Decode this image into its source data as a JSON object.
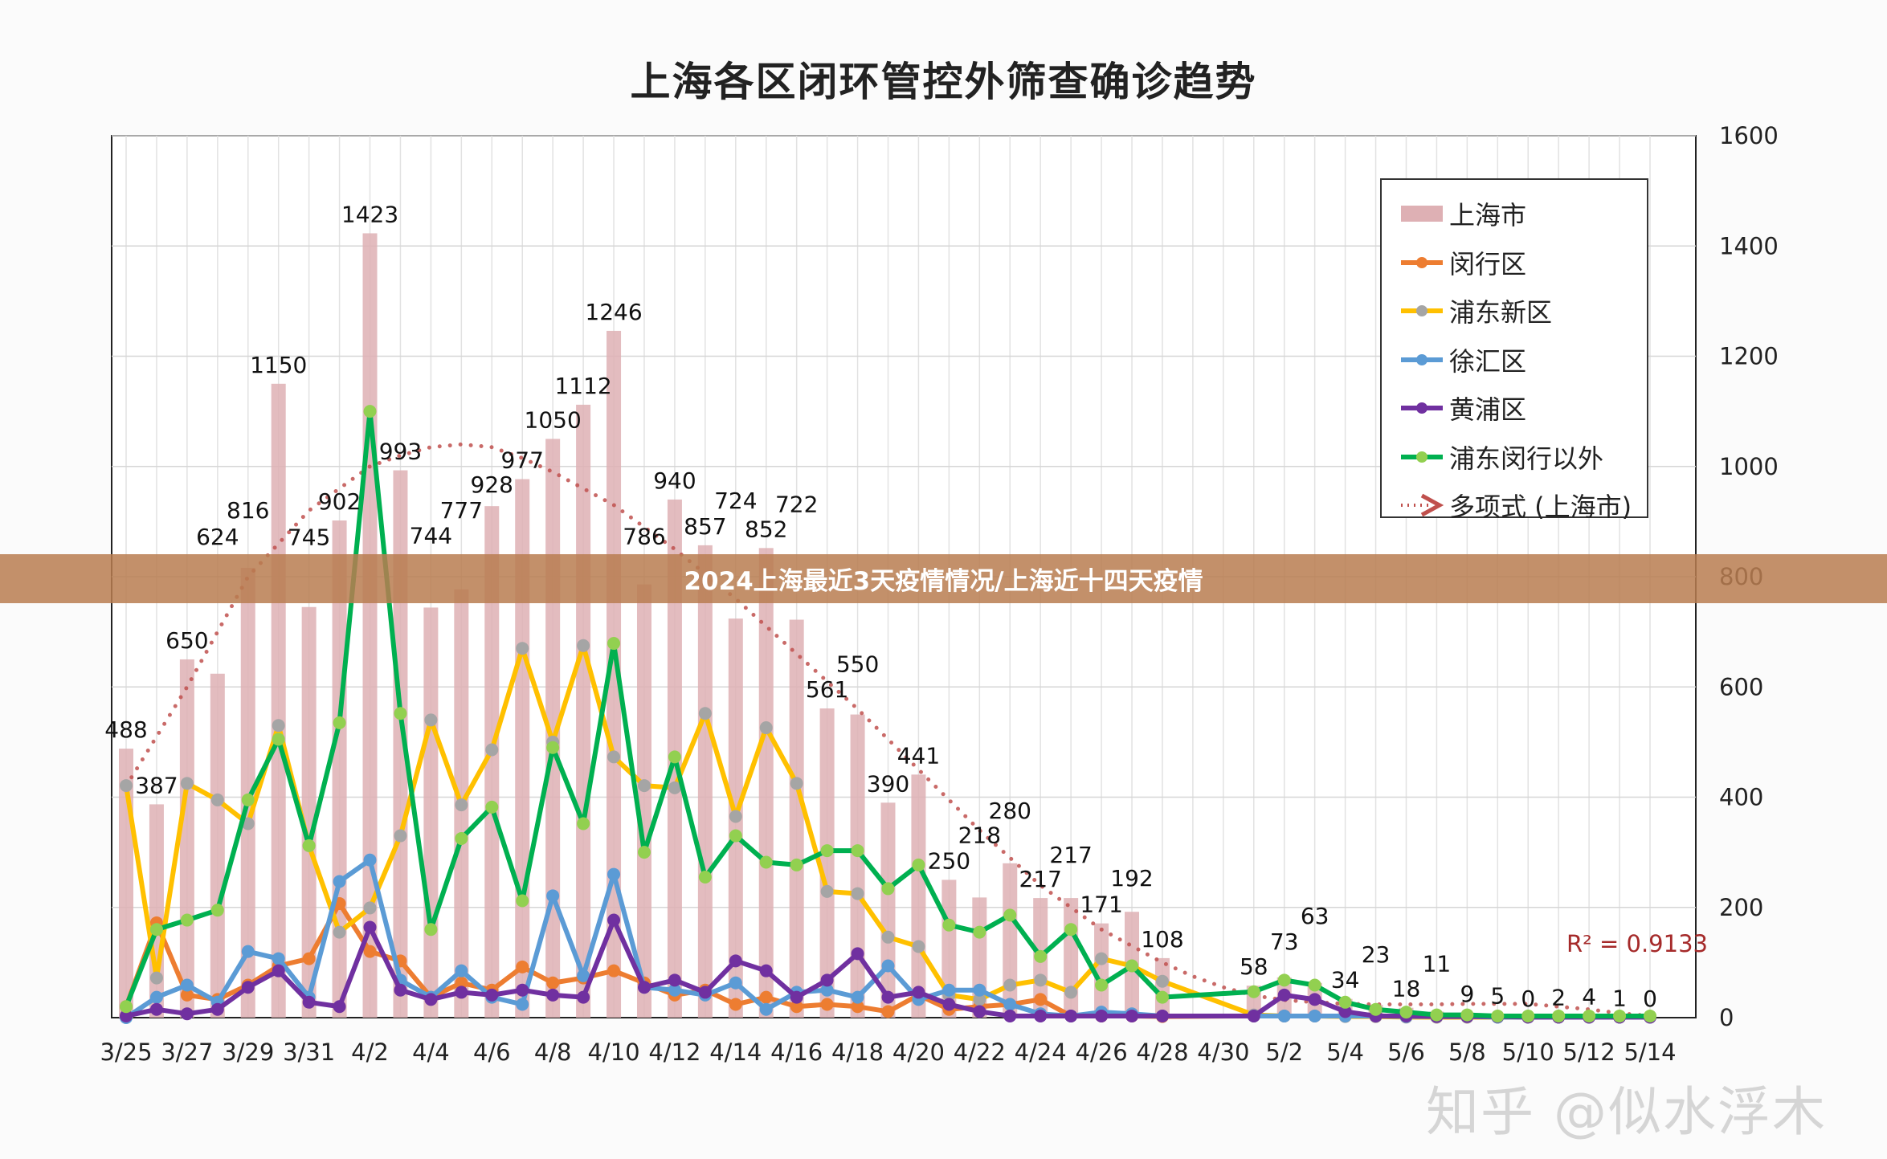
{
  "title": "上海各区闭环管控外筛查确诊趋势",
  "banner": "2024上海最近3天疫情情况/上海近十四天疫情",
  "watermark": "知乎 @似水浮木",
  "chart_data": {
    "type": "bar+line",
    "title": "上海各区闭环管控外筛查确诊趋势",
    "dates": [
      "3/25",
      "3/26",
      "3/27",
      "3/28",
      "3/29",
      "3/30",
      "3/31",
      "4/1",
      "4/2",
      "4/3",
      "4/4",
      "4/5",
      "4/6",
      "4/7",
      "4/8",
      "4/9",
      "4/10",
      "4/11",
      "4/12",
      "4/13",
      "4/14",
      "4/15",
      "4/16",
      "4/17",
      "4/18",
      "4/19",
      "4/20",
      "4/21",
      "4/22",
      "4/23",
      "4/24",
      "4/25",
      "4/26",
      "4/27",
      "4/28",
      "4/29",
      "4/30",
      "5/1",
      "5/2",
      "5/3",
      "5/4",
      "5/5",
      "5/6",
      "5/7",
      "5/8",
      "5/9",
      "5/10",
      "5/11",
      "5/12",
      "5/13",
      "5/14"
    ],
    "x_tick_labels": [
      "3/25",
      "3/27",
      "3/29",
      "3/31",
      "4/2",
      "4/4",
      "4/6",
      "4/8",
      "4/10",
      "4/12",
      "4/14",
      "4/16",
      "4/18",
      "4/20",
      "4/22",
      "4/24",
      "4/26",
      "4/28",
      "4/30",
      "5/2",
      "5/4",
      "5/6",
      "5/8",
      "5/10",
      "5/12",
      "5/14"
    ],
    "y_ticks": [
      0,
      200,
      400,
      600,
      800,
      1000,
      1200,
      1400,
      1600
    ],
    "ylim": [
      0,
      1600
    ],
    "grid": true,
    "legend_position": "top-right",
    "r_squared_label": "R² = 0.9133",
    "series": [
      {
        "name": "上海市",
        "kind": "bar",
        "color": "#deb0b4",
        "values": [
          488,
          387,
          650,
          624,
          816,
          1150,
          745,
          902,
          1423,
          993,
          744,
          777,
          928,
          977,
          1050,
          1112,
          1246,
          786,
          940,
          857,
          724,
          852,
          722,
          561,
          550,
          390,
          441,
          250,
          218,
          280,
          217,
          217,
          171,
          192,
          108,
          null,
          null,
          58,
          73,
          63,
          34,
          23,
          18,
          11,
          9,
          5,
          0,
          2,
          4,
          1,
          0
        ]
      },
      {
        "name": "闵行区",
        "kind": "line",
        "color": "#ed7d31",
        "marker": "#ed7d31",
        "values": [
          20,
          172,
          41,
          33,
          59,
          94,
          107,
          207,
          120,
          103,
          37,
          63,
          50,
          92,
          63,
          72,
          85,
          63,
          41,
          50,
          24,
          37,
          20,
          24,
          20,
          11,
          41,
          15,
          20,
          24,
          33,
          3,
          3,
          3,
          2,
          null,
          null,
          3,
          3,
          3,
          3,
          2,
          2,
          1,
          1,
          1,
          1,
          1,
          1,
          1,
          1
        ]
      },
      {
        "name": "浦东新区",
        "kind": "line",
        "color": "#ffc000",
        "marker": "#a5a5a5",
        "values": [
          421,
          72,
          425,
          395,
          352,
          530,
          312,
          155,
          199,
          330,
          540,
          386,
          486,
          670,
          500,
          675,
          473,
          421,
          417,
          552,
          365,
          526,
          425,
          229,
          225,
          146,
          129,
          41,
          33,
          59,
          68,
          46,
          107,
          94,
          66,
          null,
          null,
          5,
          3,
          3,
          2,
          2,
          1,
          1,
          1,
          1,
          1,
          1,
          1,
          1,
          1
        ]
      },
      {
        "name": "徐汇区",
        "kind": "line",
        "color": "#5b9bd5",
        "marker": "#5b9bd5",
        "values": [
          0,
          37,
          59,
          28,
          120,
          107,
          37,
          247,
          286,
          68,
          37,
          85,
          37,
          24,
          221,
          76,
          260,
          55,
          50,
          41,
          63,
          15,
          46,
          50,
          37,
          94,
          33,
          50,
          50,
          24,
          7,
          3,
          10,
          7,
          3,
          null,
          null,
          3,
          3,
          3,
          3,
          3,
          2,
          2,
          2,
          1,
          1,
          1,
          1,
          1,
          1
        ]
      },
      {
        "name": "黄浦区",
        "kind": "line",
        "color": "#7030a0",
        "marker": "#7030a0",
        "values": [
          3,
          15,
          7,
          15,
          55,
          85,
          28,
          20,
          164,
          50,
          33,
          46,
          41,
          50,
          41,
          37,
          177,
          55,
          68,
          46,
          103,
          85,
          37,
          68,
          116,
          37,
          46,
          24,
          11,
          3,
          3,
          3,
          3,
          3,
          3,
          null,
          null,
          3,
          41,
          33,
          11,
          3,
          3,
          2,
          2,
          2,
          1,
          1,
          1,
          1,
          1
        ]
      },
      {
        "name": "浦东闵行以外",
        "kind": "line",
        "color": "#00b050",
        "marker": "#92d050",
        "values": [
          20,
          160,
          177,
          195,
          395,
          505,
          312,
          535,
          1100,
          552,
          160,
          325,
          382,
          212,
          490,
          352,
          679,
          300,
          473,
          255,
          330,
          282,
          277,
          303,
          303,
          234,
          277,
          168,
          155,
          186,
          111,
          160,
          59,
          94,
          37,
          null,
          null,
          47,
          68,
          59,
          28,
          15,
          10,
          5,
          5,
          3,
          3,
          3,
          3,
          3,
          3
        ]
      },
      {
        "name": "多项式 (上海市)",
        "kind": "trendline",
        "color": "#c0504d",
        "values": [
          420,
          510,
          600,
          700,
          800,
          860,
          920,
          960,
          1000,
          1020,
          1035,
          1040,
          1035,
          1015,
          990,
          960,
          930,
          890,
          850,
          805,
          760,
          710,
          660,
          610,
          560,
          505,
          450,
          395,
          340,
          290,
          240,
          200,
          160,
          130,
          100,
          75,
          55,
          40,
          32,
          28,
          25,
          24,
          24,
          24,
          25,
          25,
          25,
          20,
          15,
          8,
          3
        ]
      }
    ]
  }
}
